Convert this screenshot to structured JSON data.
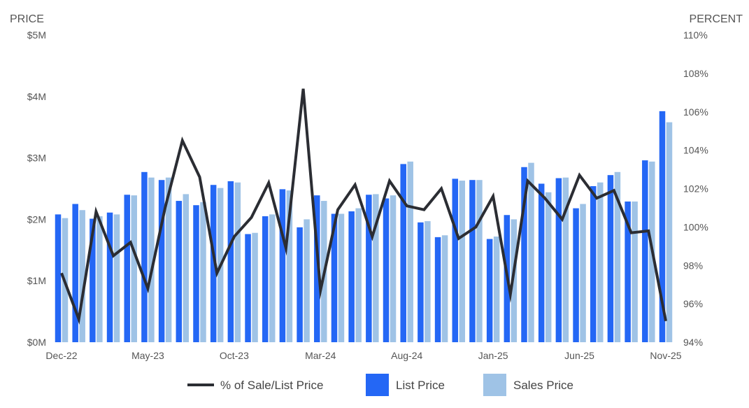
{
  "colors": {
    "list_price": "#2467f5",
    "sales_price": "#9fc3e6",
    "line": "#2b2d33",
    "axis_text": "#555555",
    "legend_text": "#444444"
  },
  "chart_data": {
    "type": "bar",
    "left_axis_title": "PRICE",
    "right_axis_title": "PERCENT",
    "left_ticks": [
      "$0M",
      "$1M",
      "$2M",
      "$3M",
      "$4M",
      "$5M"
    ],
    "right_ticks": [
      "94%",
      "96%",
      "98%",
      "100%",
      "102%",
      "104%",
      "106%",
      "108%",
      "110%"
    ],
    "ylim_left": [
      0,
      5000000
    ],
    "ylim_right": [
      94,
      110
    ],
    "x_tick_labels": [
      "Dec-22",
      "May-23",
      "Oct-23",
      "Mar-24",
      "Aug-24",
      "Jan-25",
      "Jun-25",
      "Nov-25"
    ],
    "x_tick_indices": [
      0,
      5,
      10,
      15,
      20,
      25,
      30,
      35
    ],
    "categories": [
      "Dec-22",
      "Jan-23",
      "Feb-23",
      "Mar-23",
      "Apr-23",
      "May-23",
      "Jun-23",
      "Jul-23",
      "Aug-23",
      "Sep-23",
      "Oct-23",
      "Nov-23",
      "Dec-23",
      "Jan-24",
      "Feb-24",
      "Mar-24",
      "Apr-24",
      "May-24",
      "Jun-24",
      "Jul-24",
      "Aug-24",
      "Sep-24",
      "Oct-24",
      "Nov-24",
      "Dec-24",
      "Jan-25",
      "Feb-25",
      "Mar-25",
      "Apr-25",
      "May-25",
      "Jun-25",
      "Jul-25",
      "Aug-25",
      "Sep-25",
      "Oct-25",
      "Nov-25"
    ],
    "series": [
      {
        "name": "List Price",
        "axis": "left",
        "kind": "bar",
        "values": [
          2080000,
          2250000,
          2010000,
          2110000,
          2400000,
          2770000,
          2640000,
          2300000,
          2230000,
          2560000,
          2620000,
          1760000,
          2050000,
          2490000,
          1870000,
          2390000,
          2090000,
          2130000,
          2400000,
          2340000,
          2900000,
          1950000,
          1710000,
          2660000,
          2640000,
          1680000,
          2070000,
          2850000,
          2580000,
          2670000,
          2180000,
          2540000,
          2720000,
          2290000,
          2960000,
          3760000
        ]
      },
      {
        "name": "Sales Price",
        "axis": "left",
        "kind": "bar",
        "values": [
          2020000,
          2150000,
          2050000,
          2080000,
          2390000,
          2680000,
          2680000,
          2410000,
          2280000,
          2510000,
          2600000,
          1780000,
          2080000,
          2470000,
          2000000,
          2300000,
          2090000,
          2180000,
          2410000,
          2390000,
          2940000,
          1970000,
          1740000,
          2630000,
          2640000,
          1720000,
          2000000,
          2920000,
          2440000,
          2680000,
          2250000,
          2600000,
          2770000,
          2290000,
          2940000,
          3580000
        ]
      },
      {
        "name": "% of Sale/List Price",
        "axis": "right",
        "kind": "line",
        "values": [
          97.6,
          95.2,
          100.8,
          98.5,
          99.2,
          96.8,
          101.0,
          104.5,
          102.6,
          97.6,
          99.5,
          100.5,
          102.3,
          98.9,
          107.2,
          96.7,
          100.9,
          102.2,
          99.5,
          102.4,
          101.1,
          100.9,
          102.0,
          99.4,
          100.0,
          101.6,
          96.5,
          102.4,
          101.5,
          100.4,
          102.7,
          101.5,
          101.9,
          99.7,
          99.8,
          95.1
        ]
      }
    ],
    "legend": {
      "placement": "bottom",
      "items": [
        {
          "label": "% of Sale/List Price",
          "kind": "line"
        },
        {
          "label": "List Price",
          "kind": "bar"
        },
        {
          "label": "Sales Price",
          "kind": "bar"
        }
      ]
    },
    "grid": false
  }
}
